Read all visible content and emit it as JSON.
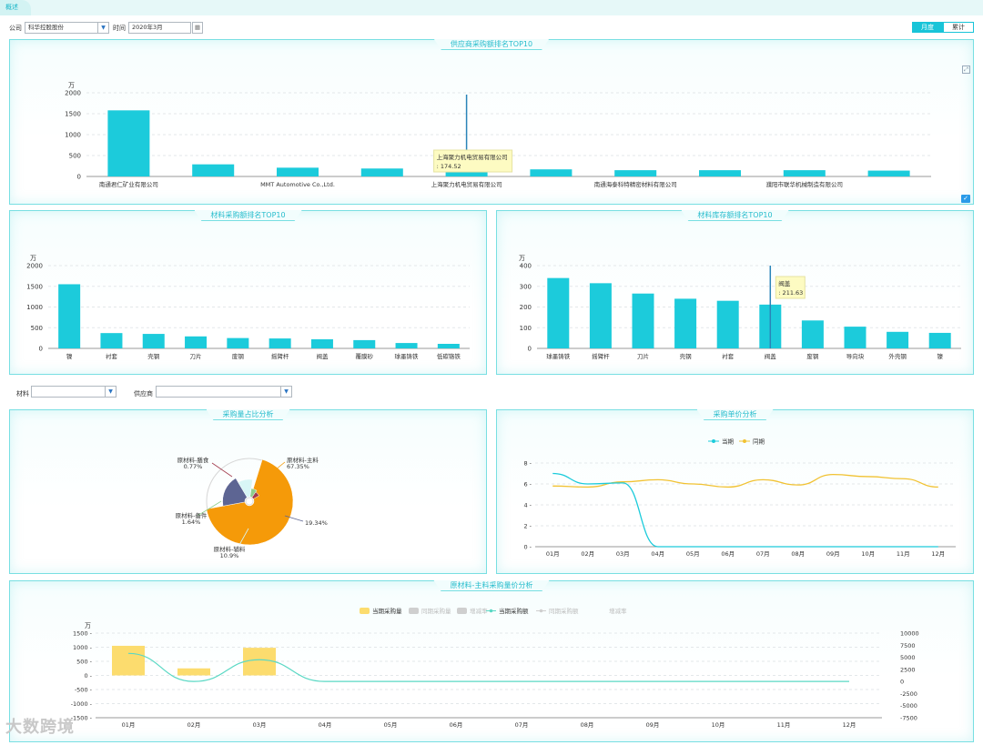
{
  "tab": {
    "label": "概述"
  },
  "filters": {
    "company_label": "公司",
    "company_value": "科华控股股份",
    "time_label": "时间",
    "time_value": "2020年3月",
    "material_label": "材料",
    "supplier_label": "供应商"
  },
  "toggle": {
    "monthly": "月度",
    "cumulative": "累计"
  },
  "icons": [
    "calendar-icon",
    "expand-icon",
    "checkbox-icon",
    "chevron-down-icon"
  ],
  "colors": {
    "accent": "#18c4d8",
    "bar": "#1ccbdb",
    "line2": "#f1c232",
    "border": "#78dfe2"
  },
  "charts": {
    "supplier": {
      "title": "供应商采购额排名TOP10",
      "unit": "万",
      "ylim": [
        0,
        2000
      ],
      "yticks": [
        "0",
        "500",
        "1000",
        "1500",
        "2000"
      ],
      "categories": [
        "南通君仁矿业有限公司",
        "",
        "MMT Automotive Co.,Ltd.",
        "",
        "上海聚力机电贸易有限公司",
        "",
        "南通海泰科特精密材料有限公司",
        "",
        "濮阳市联华机械制造有限公司",
        ""
      ],
      "values": [
        1580,
        290,
        210,
        190,
        175,
        170,
        150,
        150,
        150,
        140
      ],
      "tooltip": {
        "name": "上海聚力机电贸易有限公司",
        "value": ": 174.52"
      }
    },
    "material": {
      "title": "材料采购额排名TOP10",
      "unit": "万",
      "ylim": [
        0,
        2000
      ],
      "yticks": [
        "0",
        "500",
        "1000",
        "1500",
        "2000"
      ],
      "categories": [
        "镍",
        "衬套",
        "壳钢",
        "刀片",
        "废钢",
        "摇臂杆",
        "阀盖",
        "覆膜砂",
        "球墨铸铁",
        "低碳铬铁"
      ],
      "values": [
        1550,
        370,
        350,
        290,
        250,
        240,
        220,
        200,
        130,
        110
      ]
    },
    "inventory": {
      "title": "材料库存额排名TOP10",
      "unit": "万",
      "ylim": [
        0,
        400
      ],
      "yticks": [
        "0",
        "100",
        "200",
        "300",
        "400"
      ],
      "categories": [
        "球墨铸铁",
        "摇臂杆",
        "刀片",
        "壳钢",
        "衬套",
        "阀盖",
        "废钢",
        "导向块",
        "外壳钢",
        "镍"
      ],
      "values": [
        340,
        315,
        265,
        240,
        230,
        211.63,
        135,
        105,
        80,
        75
      ],
      "tooltip": {
        "name": "阀盖",
        "value": ": 211.63"
      }
    },
    "share": {
      "title": "采购量占比分析",
      "type": "pie",
      "labels": [
        {
          "name": "原材料-主料",
          "pct": "67.35%",
          "value": 67.35,
          "color": "#f59a09"
        },
        {
          "name": "",
          "pct": "19.34%",
          "value": 19.34,
          "color": "#5d6593"
        },
        {
          "name": "原材料-辅料",
          "pct": "10.9%",
          "value": 10.9,
          "color": "#d8f6f6"
        },
        {
          "name": "原材料-备件",
          "pct": "1.64%",
          "value": 1.64,
          "color": "#8ecf8e"
        },
        {
          "name": "原材料-膳食",
          "pct": "0.77%",
          "value": 0.77,
          "color": "#a23a4c"
        }
      ]
    },
    "price": {
      "title": "采购单价分析",
      "type": "line",
      "legend": [
        "当期",
        "同期"
      ],
      "categories": [
        "01月",
        "02月",
        "03月",
        "04月",
        "05月",
        "06月",
        "07月",
        "08月",
        "09月",
        "10月",
        "11月",
        "12月"
      ],
      "ylim": [
        0,
        8
      ],
      "yticks": [
        "0",
        "2",
        "4",
        "6",
        "8"
      ],
      "current": [
        7.0,
        6.0,
        6.1,
        0,
        0,
        0,
        0,
        0,
        0,
        0,
        0,
        0
      ],
      "previous": [
        5.8,
        5.7,
        6.2,
        6.4,
        6.0,
        5.7,
        6.4,
        5.9,
        6.9,
        6.7,
        6.5,
        5.7
      ]
    },
    "main": {
      "title": "原材料-主料采购量价分析",
      "unit": "万",
      "legend": [
        "当期采购量",
        "同期采购量",
        "增减率",
        "当期采购额",
        "同期采购额",
        "增减率"
      ],
      "categories": [
        "01月",
        "02月",
        "03月",
        "04月",
        "05月",
        "06月",
        "07月",
        "08月",
        "09月",
        "10月",
        "11月",
        "12月"
      ],
      "ylim": [
        -1500,
        1500
      ],
      "yticks": [
        "1500",
        "1000",
        "500",
        "0",
        "-500",
        "-1000",
        "-1500"
      ],
      "y2lim": [
        -7500,
        10000
      ],
      "y2ticks": [
        "10000",
        "7500",
        "5000",
        "2500",
        "0",
        "-2500",
        "-5000",
        "-7500"
      ],
      "volume": [
        1050,
        250,
        980,
        0,
        0,
        0,
        0,
        0,
        0,
        0,
        0,
        0
      ],
      "amount": [
        5800,
        0,
        4500,
        0,
        0,
        0,
        0,
        0,
        0,
        0,
        0,
        0
      ]
    }
  },
  "watermark": "大数跨境"
}
